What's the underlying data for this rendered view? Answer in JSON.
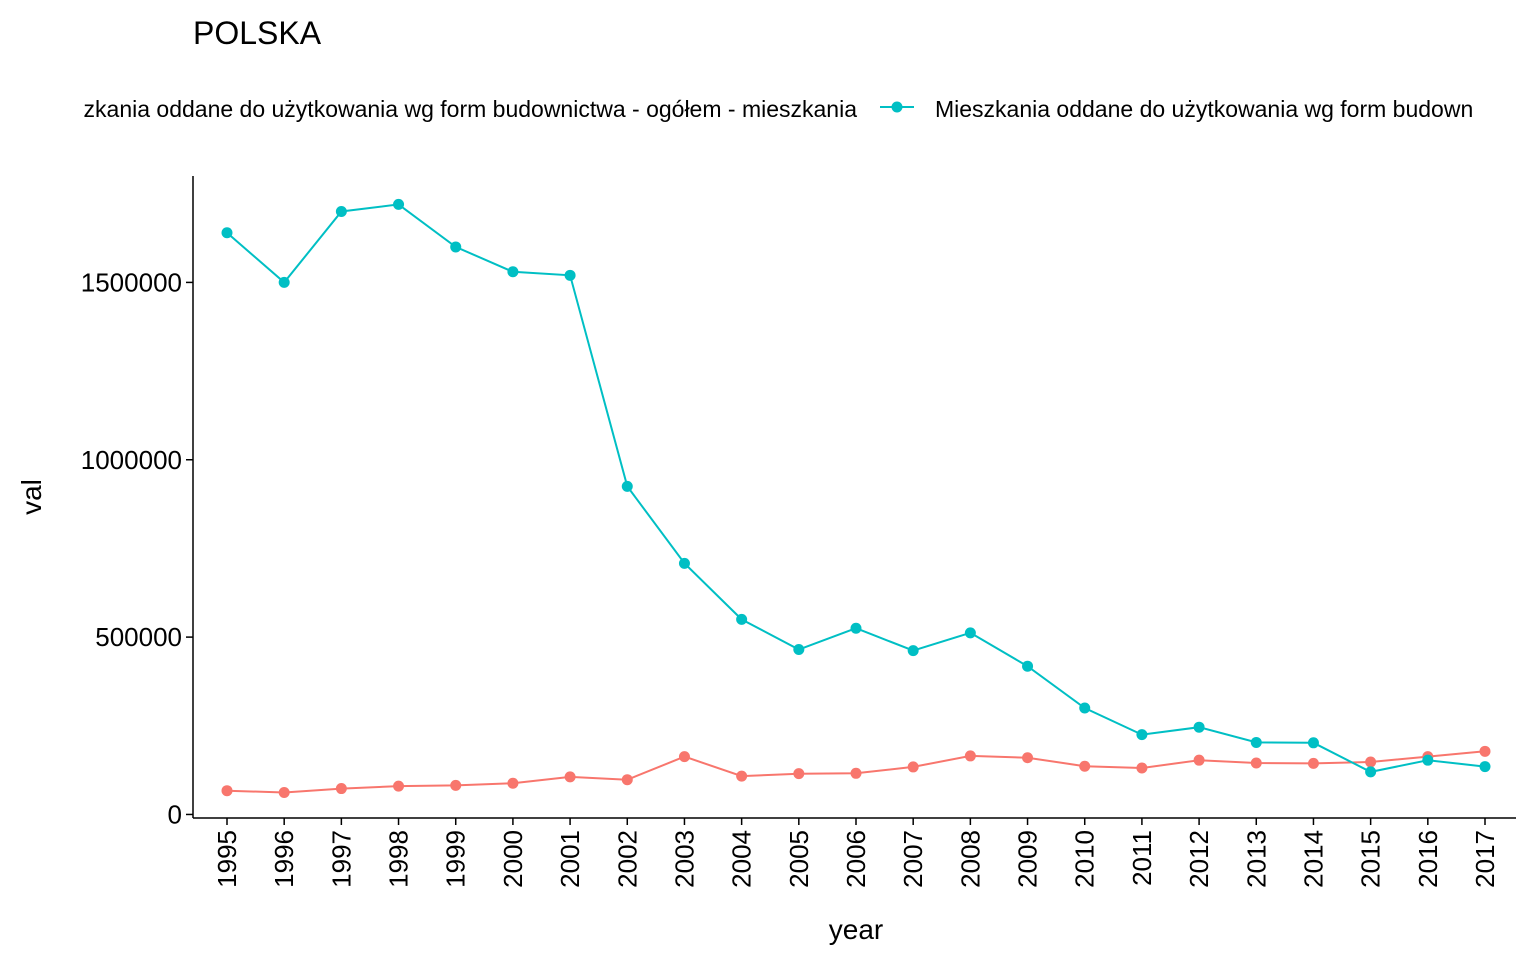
{
  "chart_data": {
    "type": "line",
    "title": "POLSKA",
    "xlabel": "year",
    "ylabel": "val",
    "legend_position": "top",
    "grid": false,
    "categories": [
      "1995",
      "1996",
      "1997",
      "1998",
      "1999",
      "2000",
      "2001",
      "2002",
      "2003",
      "2004",
      "2005",
      "2006",
      "2007",
      "2008",
      "2009",
      "2010",
      "2011",
      "2012",
      "2013",
      "2014",
      "2015",
      "2016",
      "2017"
    ],
    "ylim": [
      -10000,
      1800000
    ],
    "yticks": [
      0,
      500000,
      1000000,
      1500000
    ],
    "ytick_labels": [
      "0",
      "500000",
      "1000000",
      "1500000"
    ],
    "series": [
      {
        "name": "Mieszkania oddane do użytkowania wg form budownictwa - ogółem - mieszkania",
        "legend_label": "zkania oddane do użytkowania wg form budownictwa - ogółem - mieszkania",
        "color": "#F8766D",
        "values": [
          67000,
          62000,
          73000,
          80000,
          82000,
          88000,
          106000,
          98000,
          163000,
          108000,
          115000,
          116000,
          134000,
          165000,
          160000,
          136000,
          131000,
          153000,
          145000,
          144000,
          148000,
          163000,
          178000
        ]
      },
      {
        "name": "Mieszkania oddane do użytkowania wg form budownictwa",
        "legend_label": "Mieszkania oddane do użytkowania wg form budown",
        "color": "#00BFC4",
        "values": [
          1640000,
          1500000,
          1700000,
          1720000,
          1600000,
          1530000,
          1520000,
          925000,
          708000,
          550000,
          465000,
          525000,
          462000,
          512000,
          418000,
          300000,
          225000,
          246000,
          203000,
          202000,
          120000,
          153000,
          135000
        ]
      }
    ]
  }
}
